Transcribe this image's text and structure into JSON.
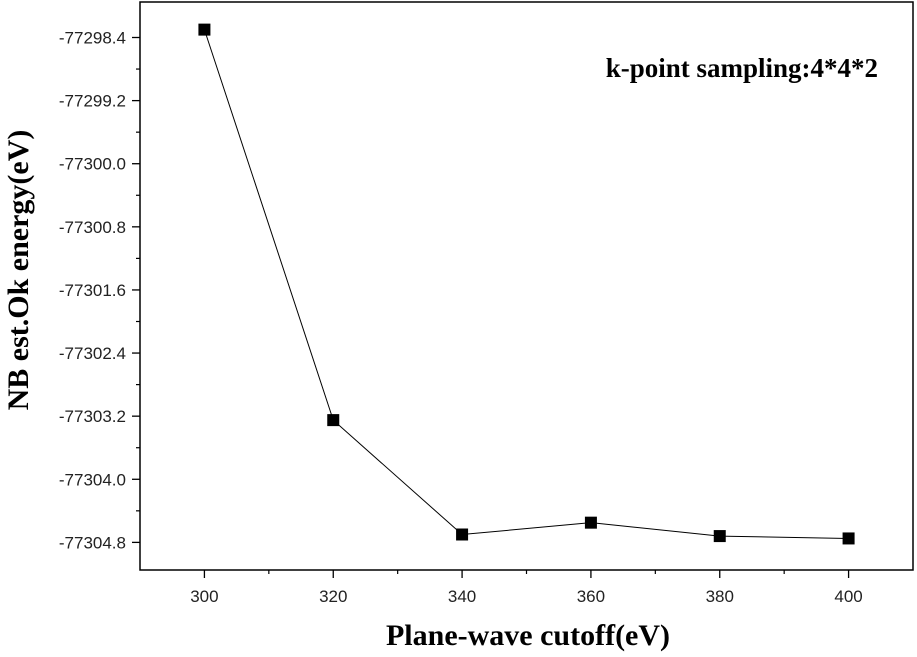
{
  "chart_data": {
    "type": "line",
    "title": "",
    "xlabel": "Plane-wave cutoff(eV)",
    "ylabel": "NB est.Ok energy(eV)",
    "annotation": "k-point sampling:4*4*2",
    "x": [
      300,
      320,
      340,
      360,
      380,
      400
    ],
    "series": [
      {
        "name": "",
        "values": [
          -77298.3,
          -77303.25,
          -77304.7,
          -77304.55,
          -77304.72,
          -77304.75
        ],
        "color": "#000000",
        "marker": "square"
      }
    ],
    "xlim": [
      290,
      410
    ],
    "ylim": [
      -77305.15,
      -77297.95
    ],
    "xticks": [
      300,
      320,
      340,
      360,
      380,
      400
    ],
    "xtick_labels": [
      "300",
      "320",
      "340",
      "360",
      "380",
      "400"
    ],
    "yticks": [
      -77298.4,
      -77299.2,
      -77300.0,
      -77300.8,
      -77301.6,
      -77302.4,
      -77303.2,
      -77304.0,
      -77304.8
    ],
    "ytick_labels": [
      "-77298.4",
      "-77299.2",
      "-77300.0",
      "-77300.8",
      "-77301.6",
      "-77302.4",
      "-77303.2",
      "-77304.0",
      "-77304.8"
    ],
    "grid": false,
    "legend": false
  }
}
